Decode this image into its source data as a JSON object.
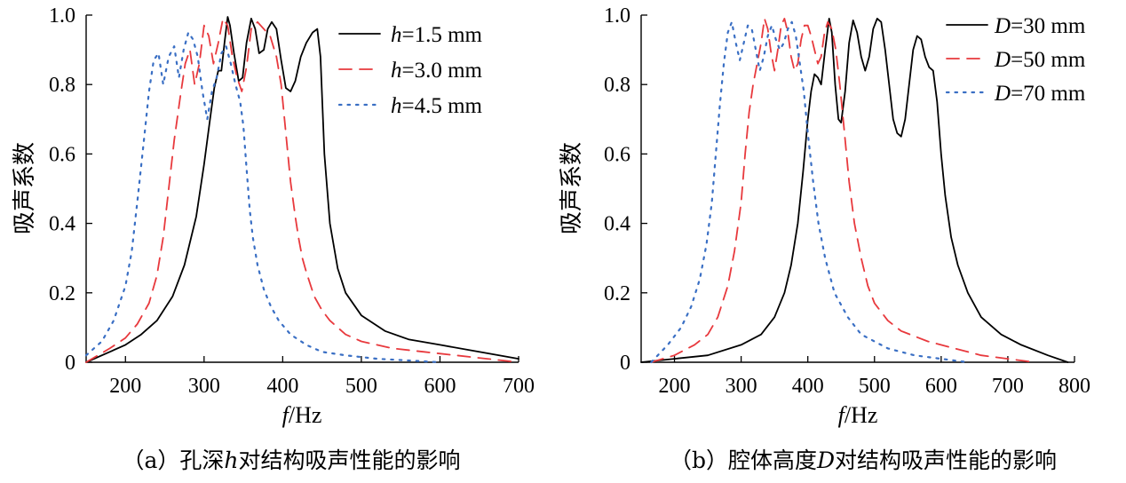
{
  "chart_data": [
    {
      "type": "line",
      "caption_prefix": "（a）孔深",
      "caption_symbol": "h",
      "caption_suffix": "对结构吸声性能的影响",
      "xlabel_symbol": "f",
      "xlabel_unit": "/Hz",
      "ylabel": "吸声系数",
      "xlim": [
        150,
        700
      ],
      "ylim": [
        0,
        1.0
      ],
      "xticks": [
        200,
        300,
        400,
        500,
        600,
        700
      ],
      "xtick_labels": [
        "200",
        "300",
        "400",
        "500",
        "600",
        "700"
      ],
      "yticks": [
        0,
        0.2,
        0.4,
        0.6,
        0.8,
        1.0
      ],
      "ytick_labels": [
        "0",
        "0.2",
        "0.4",
        "0.6",
        "0.8",
        "1.0"
      ],
      "grid": false,
      "legend_position": "top-right",
      "series": [
        {
          "symbol": "h",
          "rest": "=1.5 mm",
          "style": "solid",
          "color": "#000000",
          "x": [
            150,
            180,
            200,
            220,
            240,
            260,
            275,
            290,
            300,
            307,
            313,
            318,
            322,
            326,
            330,
            333,
            338,
            344,
            349,
            354,
            360,
            365,
            370,
            376,
            381,
            386,
            392,
            398,
            404,
            410,
            416,
            423,
            430,
            438,
            444,
            448,
            453,
            460,
            470,
            480,
            500,
            530,
            560,
            600,
            650,
            700
          ],
          "y": [
            0.0,
            0.03,
            0.05,
            0.08,
            0.12,
            0.19,
            0.28,
            0.42,
            0.57,
            0.69,
            0.79,
            0.84,
            0.84,
            0.92,
            0.995,
            0.97,
            0.89,
            0.81,
            0.82,
            0.92,
            0.99,
            0.96,
            0.89,
            0.9,
            0.96,
            0.98,
            0.96,
            0.87,
            0.79,
            0.78,
            0.81,
            0.88,
            0.92,
            0.95,
            0.96,
            0.88,
            0.6,
            0.4,
            0.27,
            0.2,
            0.135,
            0.09,
            0.066,
            0.05,
            0.03,
            0.01
          ]
        },
        {
          "symbol": "h",
          "rest": "=3.0 mm",
          "style": "dashed",
          "color": "#e8393d",
          "x": [
            150,
            180,
            200,
            215,
            230,
            240,
            248,
            255,
            262,
            270,
            276,
            282,
            288,
            294,
            300,
            306,
            312,
            318,
            324,
            330,
            336,
            342,
            348,
            354,
            360,
            368,
            376,
            384,
            392,
            398,
            404,
            410,
            416,
            420,
            425,
            430,
            440,
            450,
            460,
            480,
            500,
            540,
            580,
            620,
            660,
            700
          ],
          "y": [
            0.0,
            0.04,
            0.07,
            0.11,
            0.17,
            0.25,
            0.36,
            0.5,
            0.64,
            0.77,
            0.86,
            0.9,
            0.8,
            0.86,
            0.97,
            0.94,
            0.86,
            0.92,
            0.99,
            0.97,
            0.88,
            0.82,
            0.78,
            0.85,
            0.96,
            0.98,
            0.96,
            0.94,
            0.88,
            0.8,
            0.66,
            0.52,
            0.42,
            0.36,
            0.3,
            0.26,
            0.19,
            0.15,
            0.12,
            0.08,
            0.06,
            0.04,
            0.03,
            0.02,
            0.01,
            0.0
          ]
        },
        {
          "symbol": "h",
          "rest": "=4.5 mm",
          "style": "dotted",
          "color": "#3a6fc4",
          "x": [
            150,
            170,
            185,
            200,
            208,
            216,
            224,
            230,
            236,
            242,
            248,
            255,
            262,
            268,
            274,
            280,
            286,
            292,
            298,
            304,
            310,
            316,
            322,
            328,
            334,
            340,
            346,
            350,
            354,
            358,
            362,
            368,
            376,
            385,
            395,
            410,
            430,
            450,
            480,
            520,
            560,
            600
          ],
          "y": [
            0.02,
            0.06,
            0.12,
            0.22,
            0.32,
            0.48,
            0.65,
            0.78,
            0.87,
            0.89,
            0.8,
            0.88,
            0.91,
            0.82,
            0.9,
            0.95,
            0.93,
            0.88,
            0.78,
            0.7,
            0.78,
            0.82,
            0.89,
            0.91,
            0.86,
            0.8,
            0.75,
            0.68,
            0.56,
            0.44,
            0.36,
            0.28,
            0.21,
            0.16,
            0.12,
            0.08,
            0.05,
            0.03,
            0.02,
            0.01,
            0.005,
            0.0
          ]
        }
      ]
    },
    {
      "type": "line",
      "caption_prefix": "（b）腔体高度",
      "caption_symbol": "D",
      "caption_suffix": "对结构吸声性能的影响",
      "xlabel_symbol": "f",
      "xlabel_unit": "/Hz",
      "ylabel": "吸声系数",
      "xlim": [
        150,
        800
      ],
      "ylim": [
        0,
        1.0
      ],
      "xticks": [
        200,
        300,
        400,
        500,
        600,
        700,
        800
      ],
      "xtick_labels": [
        "200",
        "300",
        "400",
        "500",
        "600",
        "700",
        "800"
      ],
      "yticks": [
        0,
        0.2,
        0.4,
        0.6,
        0.8,
        1.0
      ],
      "ytick_labels": [
        "0",
        "0.2",
        "0.4",
        "0.6",
        "0.8",
        "1.0"
      ],
      "grid": false,
      "legend_position": "top-right",
      "series": [
        {
          "symbol": "D",
          "rest": "=30 mm",
          "style": "solid",
          "color": "#000000",
          "x": [
            150,
            200,
            250,
            300,
            330,
            350,
            365,
            375,
            385,
            393,
            400,
            405,
            410,
            415,
            420,
            426,
            432,
            436,
            441,
            446,
            450,
            456,
            462,
            468,
            474,
            480,
            486,
            492,
            498,
            504,
            510,
            516,
            522,
            528,
            534,
            540,
            546,
            552,
            558,
            564,
            570,
            576,
            582,
            588,
            594,
            600,
            606,
            615,
            625,
            640,
            660,
            690,
            720,
            760,
            790
          ],
          "y": [
            0.0,
            0.01,
            0.02,
            0.05,
            0.08,
            0.13,
            0.2,
            0.28,
            0.4,
            0.55,
            0.7,
            0.78,
            0.83,
            0.82,
            0.8,
            0.9,
            0.99,
            0.95,
            0.8,
            0.7,
            0.69,
            0.78,
            0.92,
            0.985,
            0.95,
            0.88,
            0.84,
            0.88,
            0.96,
            0.99,
            0.98,
            0.9,
            0.8,
            0.7,
            0.66,
            0.65,
            0.7,
            0.8,
            0.9,
            0.94,
            0.93,
            0.88,
            0.85,
            0.84,
            0.75,
            0.6,
            0.48,
            0.36,
            0.28,
            0.2,
            0.13,
            0.08,
            0.05,
            0.02,
            0.0
          ]
        },
        {
          "symbol": "D",
          "rest": "=50 mm",
          "style": "dashed",
          "color": "#e8393d",
          "x": [
            165,
            200,
            230,
            250,
            265,
            280,
            290,
            300,
            306,
            312,
            318,
            324,
            330,
            335,
            340,
            345,
            350,
            355,
            360,
            365,
            370,
            375,
            380,
            385,
            390,
            395,
            400,
            405,
            410,
            415,
            420,
            425,
            430,
            436,
            442,
            448,
            455,
            462,
            470,
            480,
            490,
            500,
            520,
            540,
            580,
            620,
            660,
            700,
            740
          ],
          "y": [
            0.0,
            0.02,
            0.05,
            0.08,
            0.13,
            0.22,
            0.32,
            0.46,
            0.6,
            0.72,
            0.8,
            0.86,
            0.92,
            0.99,
            0.96,
            0.89,
            0.84,
            0.9,
            0.97,
            0.99,
            0.95,
            0.88,
            0.84,
            0.86,
            0.93,
            0.97,
            0.97,
            0.94,
            0.9,
            0.86,
            0.88,
            0.95,
            0.98,
            0.96,
            0.9,
            0.8,
            0.66,
            0.52,
            0.4,
            0.3,
            0.22,
            0.17,
            0.12,
            0.09,
            0.06,
            0.04,
            0.02,
            0.01,
            0.0
          ]
        },
        {
          "symbol": "D",
          "rest": "=70 mm",
          "style": "dotted",
          "color": "#3a6fc4",
          "x": [
            165,
            190,
            210,
            225,
            238,
            248,
            256,
            262,
            268,
            274,
            280,
            286,
            292,
            298,
            304,
            310,
            316,
            322,
            328,
            334,
            340,
            346,
            352,
            358,
            364,
            370,
            376,
            382,
            388,
            394,
            400,
            408,
            416,
            426,
            440,
            460,
            480,
            520,
            560,
            600,
            640
          ],
          "y": [
            0.0,
            0.05,
            0.1,
            0.16,
            0.24,
            0.34,
            0.46,
            0.6,
            0.74,
            0.86,
            0.95,
            0.98,
            0.92,
            0.87,
            0.92,
            0.97,
            0.96,
            0.9,
            0.84,
            0.88,
            0.94,
            0.97,
            0.93,
            0.9,
            0.92,
            0.96,
            0.98,
            0.94,
            0.86,
            0.78,
            0.66,
            0.52,
            0.4,
            0.3,
            0.2,
            0.13,
            0.08,
            0.04,
            0.02,
            0.01,
            0.0
          ]
        }
      ]
    }
  ]
}
